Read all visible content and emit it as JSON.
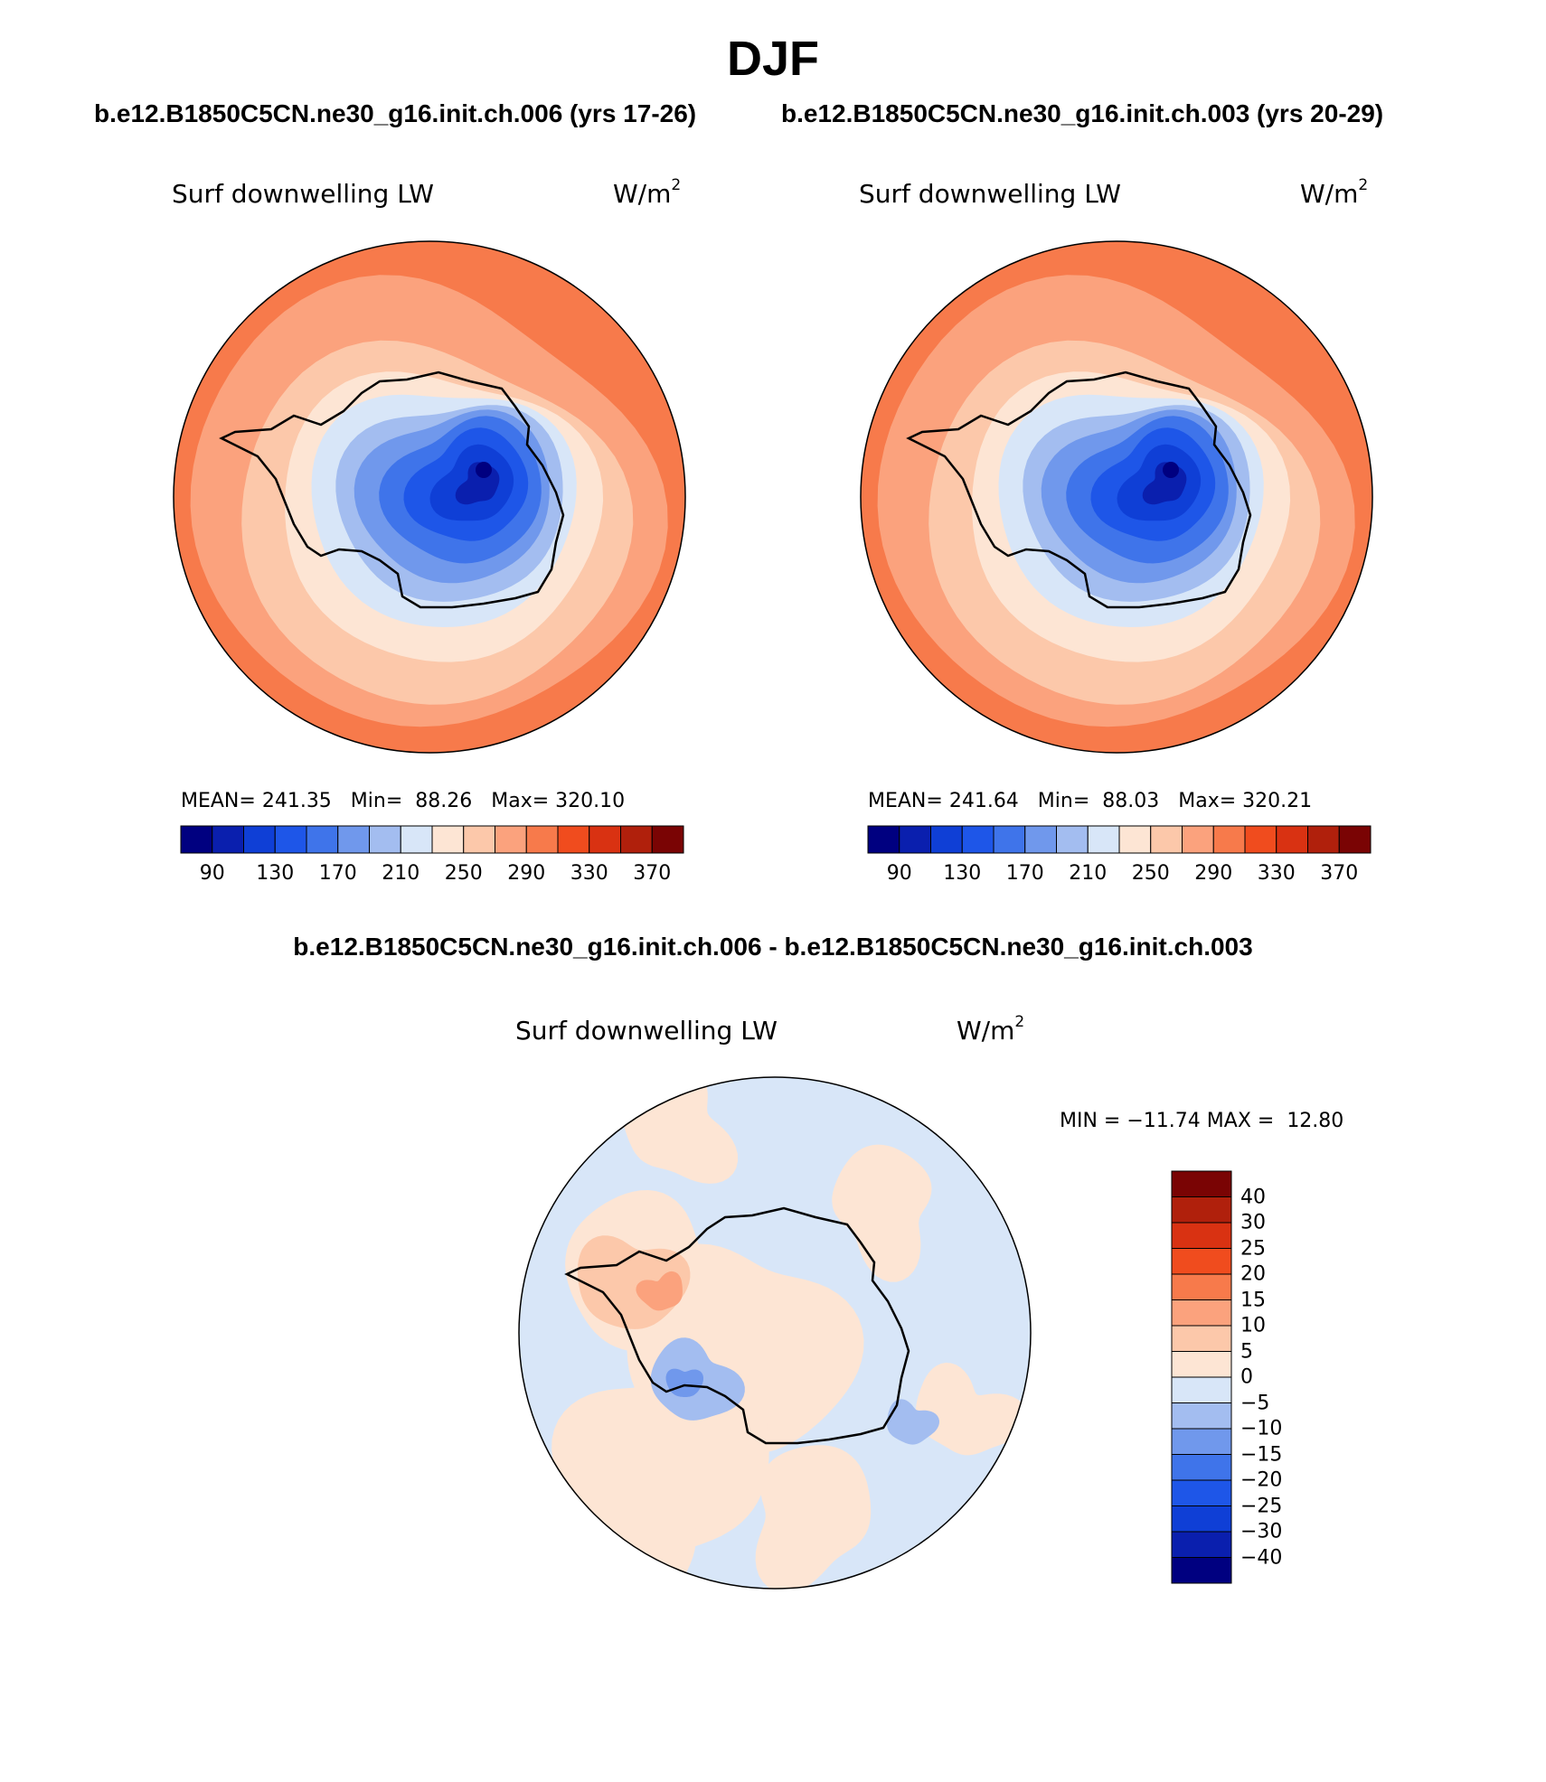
{
  "figure": {
    "title": "DJF",
    "case_titles": [
      "b.e12.B1850C5CN.ne30_g16.init.ch.006 (yrs 17-26)",
      "b.e12.B1850C5CN.ne30_g16.init.ch.003 (yrs 20-29)"
    ],
    "diff_title": "b.e12.B1850C5CN.ne30_g16.init.ch.006 - b.e12.B1850C5CN.ne30_g16.init.ch.003"
  },
  "chart_data": [
    {
      "type": "heatmap",
      "projection": "south polar stereographic",
      "variable": "Surf downwelling LW",
      "units": "W/m",
      "units_exp": "2",
      "stats": {
        "mean_label": "MEAN=",
        "mean": "241.35",
        "min_label": "Min=",
        "min": "88.26",
        "max_label": "Max=",
        "max": "320.10"
      },
      "levels": [
        90,
        110,
        130,
        150,
        170,
        190,
        210,
        230,
        250,
        270,
        290,
        310,
        330,
        350,
        370
      ],
      "tick_labels": [
        "90",
        "130",
        "170",
        "210",
        "250",
        "290",
        "330",
        "370"
      ],
      "colors": [
        "#000080",
        "#0a1fae",
        "#0f3fd6",
        "#1e56e8",
        "#3f74ea",
        "#7098ec",
        "#a3bdf0",
        "#d8e6f8",
        "#fde5d4",
        "#fcc8aa",
        "#fba27d",
        "#f77a4b",
        "#f04c1e",
        "#d93212",
        "#b0200c",
        "#7a0404"
      ]
    },
    {
      "type": "heatmap",
      "projection": "south polar stereographic",
      "variable": "Surf downwelling LW",
      "units": "W/m",
      "units_exp": "2",
      "stats": {
        "mean_label": "MEAN=",
        "mean": "241.64",
        "min_label": "Min=",
        "min": "88.03",
        "max_label": "Max=",
        "max": "320.21"
      },
      "levels": [
        90,
        110,
        130,
        150,
        170,
        190,
        210,
        230,
        250,
        270,
        290,
        310,
        330,
        350,
        370
      ],
      "tick_labels": [
        "90",
        "130",
        "170",
        "210",
        "250",
        "290",
        "330",
        "370"
      ],
      "colors": [
        "#000080",
        "#0a1fae",
        "#0f3fd6",
        "#1e56e8",
        "#3f74ea",
        "#7098ec",
        "#a3bdf0",
        "#d8e6f8",
        "#fde5d4",
        "#fcc8aa",
        "#fba27d",
        "#f77a4b",
        "#f04c1e",
        "#d93212",
        "#b0200c",
        "#7a0404"
      ]
    },
    {
      "type": "heatmap",
      "projection": "south polar stereographic",
      "variable": "Surf downwelling LW",
      "units": "W/m",
      "units_exp": "2",
      "stats": {
        "min_label": "MIN =",
        "min": "−11.74",
        "max_label": "MAX =",
        "max": "12.80"
      },
      "levels": [
        -40,
        -30,
        -25,
        -20,
        -15,
        -10,
        -5,
        0,
        5,
        10,
        15,
        20,
        25,
        30,
        40
      ],
      "tick_labels": [
        "−40",
        "−30",
        "−25",
        "−20",
        "−15",
        "−10",
        "−5",
        "0",
        "5",
        "10",
        "15",
        "20",
        "25",
        "30",
        "40"
      ],
      "colors": [
        "#000080",
        "#0a1fae",
        "#0f3fd6",
        "#1e56e8",
        "#3f74ea",
        "#7098ec",
        "#a3bdf0",
        "#d8e6f8",
        "#fde5d4",
        "#fcc8aa",
        "#fba27d",
        "#f77a4b",
        "#f04c1e",
        "#d93212",
        "#b0200c",
        "#7a0404"
      ]
    }
  ]
}
